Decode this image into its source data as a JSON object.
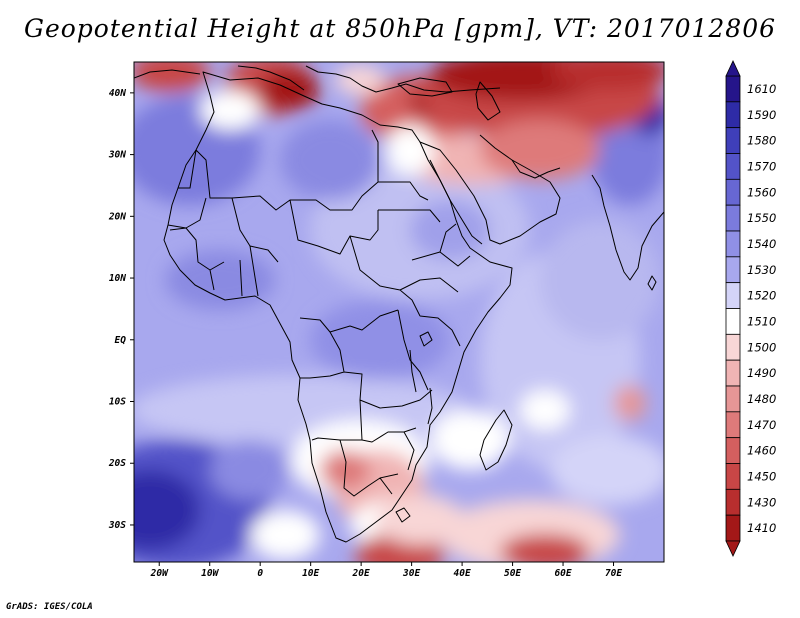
{
  "title": "Geopotential Height at 850hPa [gpm], VT: 2017012806",
  "credit": "GrADS: IGES/COLA",
  "map": {
    "lon_range": [
      -25,
      80
    ],
    "lat_range": [
      -36,
      45
    ],
    "lon_ticks": [
      {
        "value": -20,
        "label": "20W"
      },
      {
        "value": -10,
        "label": "10W"
      },
      {
        "value": 0,
        "label": "0"
      },
      {
        "value": 10,
        "label": "10E"
      },
      {
        "value": 20,
        "label": "20E"
      },
      {
        "value": 30,
        "label": "30E"
      },
      {
        "value": 40,
        "label": "40E"
      },
      {
        "value": 50,
        "label": "50E"
      },
      {
        "value": 60,
        "label": "60E"
      },
      {
        "value": 70,
        "label": "70E"
      }
    ],
    "lat_ticks": [
      {
        "value": 40,
        "label": "40N"
      },
      {
        "value": 30,
        "label": "30N"
      },
      {
        "value": 20,
        "label": "20N"
      },
      {
        "value": 10,
        "label": "10N"
      },
      {
        "value": 0,
        "label": "EQ"
      },
      {
        "value": -10,
        "label": "10S"
      },
      {
        "value": -20,
        "label": "20S"
      },
      {
        "value": -30,
        "label": "30S"
      }
    ]
  },
  "colorbar": {
    "levels": [
      {
        "label": "1610",
        "color": "#25158a"
      },
      {
        "label": "1590",
        "color": "#2e2ba6"
      },
      {
        "label": "1580",
        "color": "#3f3fba"
      },
      {
        "label": "1570",
        "color": "#5353c8"
      },
      {
        "label": "1560",
        "color": "#6767d3"
      },
      {
        "label": "1550",
        "color": "#7b7bdd"
      },
      {
        "label": "1540",
        "color": "#9090e6"
      },
      {
        "label": "1530",
        "color": "#a8a8ee"
      },
      {
        "label": "1520",
        "color": "#d4d4f8"
      },
      {
        "label": "1510",
        "color": "#ffffff"
      },
      {
        "label": "1500",
        "color": "#f8d6d6"
      },
      {
        "label": "1490",
        "color": "#f0b4b4"
      },
      {
        "label": "1480",
        "color": "#e69696"
      },
      {
        "label": "1470",
        "color": "#de7a7a"
      },
      {
        "label": "1460",
        "color": "#d45f5f"
      },
      {
        "label": "1450",
        "color": "#c84646"
      },
      {
        "label": "1430",
        "color": "#b82e2e"
      },
      {
        "label": "1410",
        "color": "#a31818"
      }
    ]
  }
}
